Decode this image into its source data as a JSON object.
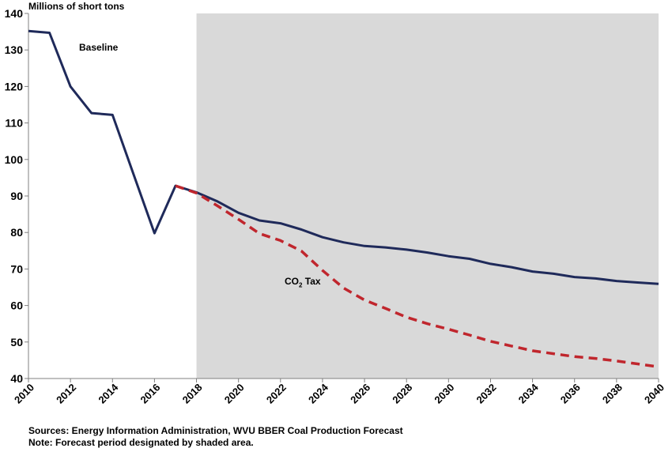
{
  "chart_data": {
    "type": "line",
    "ylabel": "Millions of short tons",
    "ylim": [
      40,
      140
    ],
    "yticks": [
      40,
      50,
      60,
      70,
      80,
      90,
      100,
      110,
      120,
      130,
      140
    ],
    "xlim": [
      2010,
      2040
    ],
    "xticks": [
      2010,
      2012,
      2014,
      2016,
      2018,
      2020,
      2022,
      2024,
      2026,
      2028,
      2030,
      2032,
      2034,
      2036,
      2038,
      2040
    ],
    "forecast_start": 2018,
    "grid": false,
    "series": [
      {
        "name": "Baseline",
        "color": "#1f2a5a",
        "style": "solid",
        "x": [
          2010,
          2011,
          2012,
          2013,
          2014,
          2015,
          2016,
          2017,
          2018,
          2019,
          2020,
          2021,
          2022,
          2023,
          2024,
          2025,
          2026,
          2027,
          2028,
          2029,
          2030,
          2031,
          2032,
          2033,
          2034,
          2035,
          2036,
          2037,
          2038,
          2039,
          2040
        ],
        "values": [
          135.2,
          134.7,
          120.0,
          112.7,
          112.2,
          96.0,
          79.8,
          92.8,
          91.0,
          88.5,
          85.4,
          83.3,
          82.5,
          80.8,
          78.7,
          77.3,
          76.3,
          75.9,
          75.3,
          74.5,
          73.5,
          72.8,
          71.4,
          70.5,
          69.3,
          68.7,
          67.8,
          67.4,
          66.7,
          66.3,
          65.9
        ]
      },
      {
        "name": "CO",
        "name_sub": "2",
        "name_suffix": " Tax",
        "color": "#c0262d",
        "style": "dashed",
        "x": [
          2017,
          2018,
          2019,
          2020,
          2021,
          2022,
          2023,
          2024,
          2025,
          2026,
          2027,
          2028,
          2029,
          2030,
          2031,
          2032,
          2033,
          2034,
          2035,
          2036,
          2037,
          2038,
          2039,
          2040
        ],
        "values": [
          92.8,
          90.8,
          87.3,
          83.6,
          79.7,
          77.8,
          74.9,
          69.6,
          64.8,
          61.5,
          59.2,
          56.8,
          55.0,
          53.5,
          51.9,
          50.2,
          48.9,
          47.6,
          46.8,
          46.0,
          45.5,
          44.8,
          44.0,
          43.2
        ]
      }
    ]
  },
  "labels": {
    "baseline": "Baseline",
    "co2_main": "CO",
    "co2_sub": "2",
    "co2_rest": " Tax"
  },
  "footnotes": {
    "sources": "Sources: Energy Information Administration, WVU BBER Coal Production Forecast",
    "note": "Note: Forecast period designated by shaded area."
  },
  "colors": {
    "forecast_shade": "#d9d9d9",
    "axis": "#808080"
  }
}
